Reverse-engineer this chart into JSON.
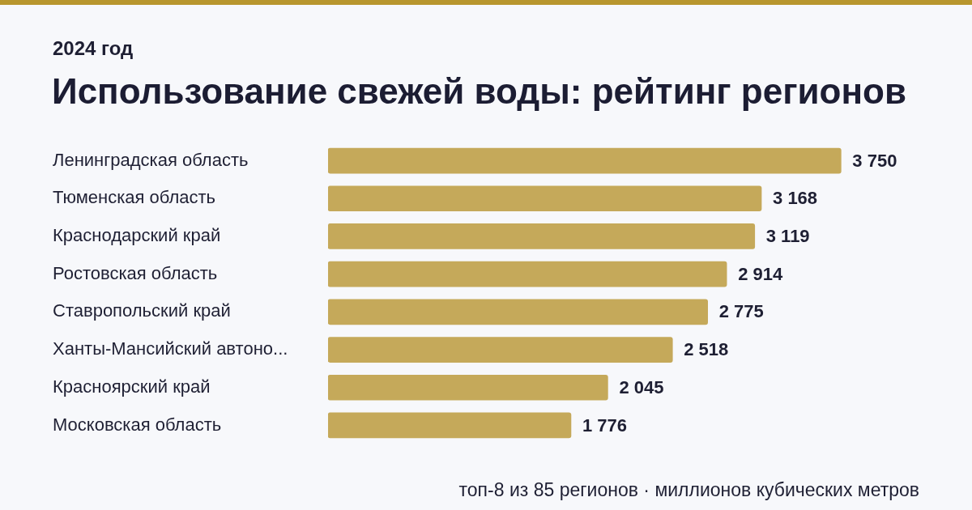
{
  "chart_data": {
    "type": "bar",
    "orientation": "horizontal",
    "title": "Использование свежей воды: рейтинг регионов",
    "subtitle": "2024 год",
    "categories": [
      "Ленинградская область",
      "Тюменская область",
      "Краснодарский край",
      "Ростовская область",
      "Ставропольский край",
      "Ханты-Мансийский автоно...",
      "Красноярский край",
      "Московская область"
    ],
    "values": [
      3750,
      3168,
      3119,
      2914,
      2775,
      2518,
      2045,
      1776
    ],
    "color": "#c5a95a",
    "data_labels": true,
    "value_labels": [
      "3 750",
      "3 168",
      "3 119",
      "2 914",
      "2 775",
      "2 518",
      "2 045",
      "1 776"
    ],
    "grid": false,
    "legend": false,
    "annotations": [
      "топ-8 из 85 регионов · миллионов кубических метров"
    ]
  }
}
